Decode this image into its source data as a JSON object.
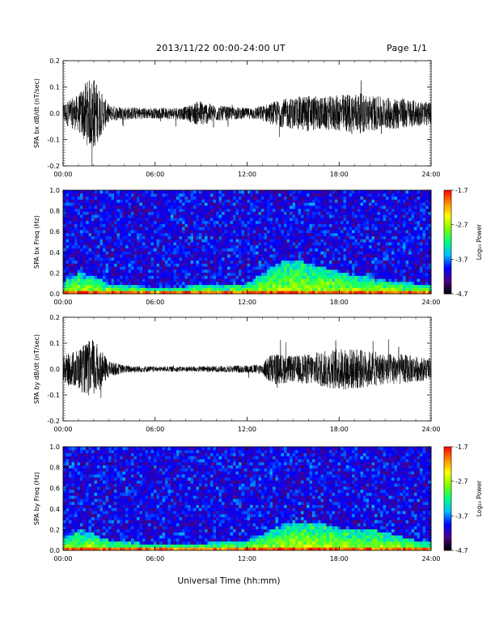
{
  "header": {
    "date_range": "2013/11/22  00:00-24:00 UT",
    "page": "Page 1/1"
  },
  "colors": {
    "background": "#ffffff",
    "trace": "#000000",
    "colormap": [
      "#000000",
      "#4b0082",
      "#0000ff",
      "#00bfff",
      "#00ff7f",
      "#7fff00",
      "#ffff00",
      "#ff8c00",
      "#ff0000"
    ]
  },
  "chart_data": [
    {
      "type": "line",
      "ylabel": "SPA bx dB/dt (nT/sec)",
      "x_ticks": [
        "00:00",
        "06:00",
        "12:00",
        "18:00",
        "24:00"
      ],
      "xlim": [
        0,
        24
      ],
      "ylim": [
        -0.2,
        0.2
      ],
      "y_ticks": [
        "-0.2",
        "-0.1",
        "0.0",
        "0.1",
        "0.2"
      ],
      "y_tick_values": [
        -0.2,
        -0.1,
        0.0,
        0.1,
        0.2
      ],
      "series": [
        {
          "x": [
            0,
            1,
            1.5,
            2,
            2.5,
            3,
            4,
            6,
            8,
            8.9,
            10,
            12,
            13,
            14,
            15,
            16,
            17,
            18,
            19,
            20,
            21,
            22,
            23,
            24
          ],
          "amplitude": [
            0.04,
            0.07,
            0.12,
            0.14,
            0.08,
            0.03,
            0.025,
            0.02,
            0.025,
            0.05,
            0.03,
            0.02,
            0.03,
            0.05,
            0.06,
            0.07,
            0.06,
            0.07,
            0.08,
            0.07,
            0.06,
            0.06,
            0.05,
            0.04
          ]
        }
      ]
    },
    {
      "type": "heatmap",
      "ylabel": "SPA bx Freq (Hz)",
      "x_ticks": [
        "00:00",
        "06:00",
        "12:00",
        "18:00",
        "24:00"
      ],
      "xlim": [
        0,
        24
      ],
      "ylim": [
        0.0,
        1.0
      ],
      "y_ticks": [
        "0.0",
        "0.2",
        "0.4",
        "0.6",
        "0.8",
        "1.0"
      ],
      "y_tick_values": [
        0.0,
        0.2,
        0.4,
        0.6,
        0.8,
        1.0
      ],
      "colorbar": {
        "label": "Log₁₀ Power",
        "ticks": [
          "-1.7",
          "-2.7",
          "-3.7",
          "-4.7"
        ],
        "tick_values": [
          -1.7,
          -2.7,
          -3.7,
          -4.7
        ],
        "range": [
          -4.7,
          -1.7
        ]
      },
      "activity": {
        "x": [
          0,
          1,
          2,
          3,
          6,
          9,
          12,
          13,
          14,
          15,
          16,
          17,
          18,
          19,
          20,
          21,
          22,
          23,
          24
        ],
        "band_top_hz": [
          0.12,
          0.2,
          0.18,
          0.1,
          0.06,
          0.08,
          0.1,
          0.2,
          0.3,
          0.33,
          0.3,
          0.26,
          0.22,
          0.18,
          0.16,
          0.13,
          0.12,
          0.1,
          0.08
        ]
      }
    },
    {
      "type": "line",
      "ylabel": "SPA by dB/dt (nT/sec)",
      "x_ticks": [
        "00:00",
        "06:00",
        "12:00",
        "18:00",
        "24:00"
      ],
      "xlim": [
        0,
        24
      ],
      "ylim": [
        -0.2,
        0.2
      ],
      "y_ticks": [
        "-0.2",
        "-0.1",
        "0.0",
        "0.1",
        "0.2"
      ],
      "y_tick_values": [
        -0.2,
        -0.1,
        0.0,
        0.1,
        0.2
      ],
      "series": [
        {
          "x": [
            0,
            1,
            1.5,
            2,
            2.5,
            3,
            4,
            6,
            8,
            10,
            12,
            13,
            13.5,
            14,
            15,
            16,
            17,
            18,
            19,
            20,
            21,
            22,
            23,
            24
          ],
          "amplitude": [
            0.05,
            0.08,
            0.1,
            0.12,
            0.07,
            0.03,
            0.015,
            0.01,
            0.01,
            0.012,
            0.015,
            0.02,
            0.06,
            0.06,
            0.05,
            0.06,
            0.07,
            0.08,
            0.08,
            0.07,
            0.06,
            0.06,
            0.05,
            0.04
          ]
        }
      ]
    },
    {
      "type": "heatmap",
      "ylabel": "SPA by Freq (Hz)",
      "xlabel": "Universal Time (hh:mm)",
      "x_ticks": [
        "00:00",
        "06:00",
        "12:00",
        "18:00",
        "24:00"
      ],
      "xlim": [
        0,
        24
      ],
      "ylim": [
        0.0,
        1.0
      ],
      "y_ticks": [
        "0.0",
        "0.2",
        "0.4",
        "0.6",
        "0.8",
        "1.0"
      ],
      "y_tick_values": [
        0.0,
        0.2,
        0.4,
        0.6,
        0.8,
        1.0
      ],
      "colorbar": {
        "label": "Log₁₀ Power",
        "ticks": [
          "-1.7",
          "-2.7",
          "-3.7",
          "-4.7"
        ],
        "tick_values": [
          -1.7,
          -2.7,
          -3.7,
          -4.7
        ],
        "range": [
          -4.7,
          -1.7
        ]
      },
      "activity": {
        "x": [
          0,
          1,
          2,
          3,
          6,
          9,
          12,
          13,
          14,
          15,
          16,
          17,
          18,
          19,
          20,
          21,
          22,
          23,
          24
        ],
        "band_top_hz": [
          0.12,
          0.2,
          0.16,
          0.1,
          0.06,
          0.07,
          0.1,
          0.16,
          0.24,
          0.28,
          0.27,
          0.26,
          0.22,
          0.2,
          0.2,
          0.18,
          0.14,
          0.1,
          0.08
        ]
      }
    }
  ]
}
